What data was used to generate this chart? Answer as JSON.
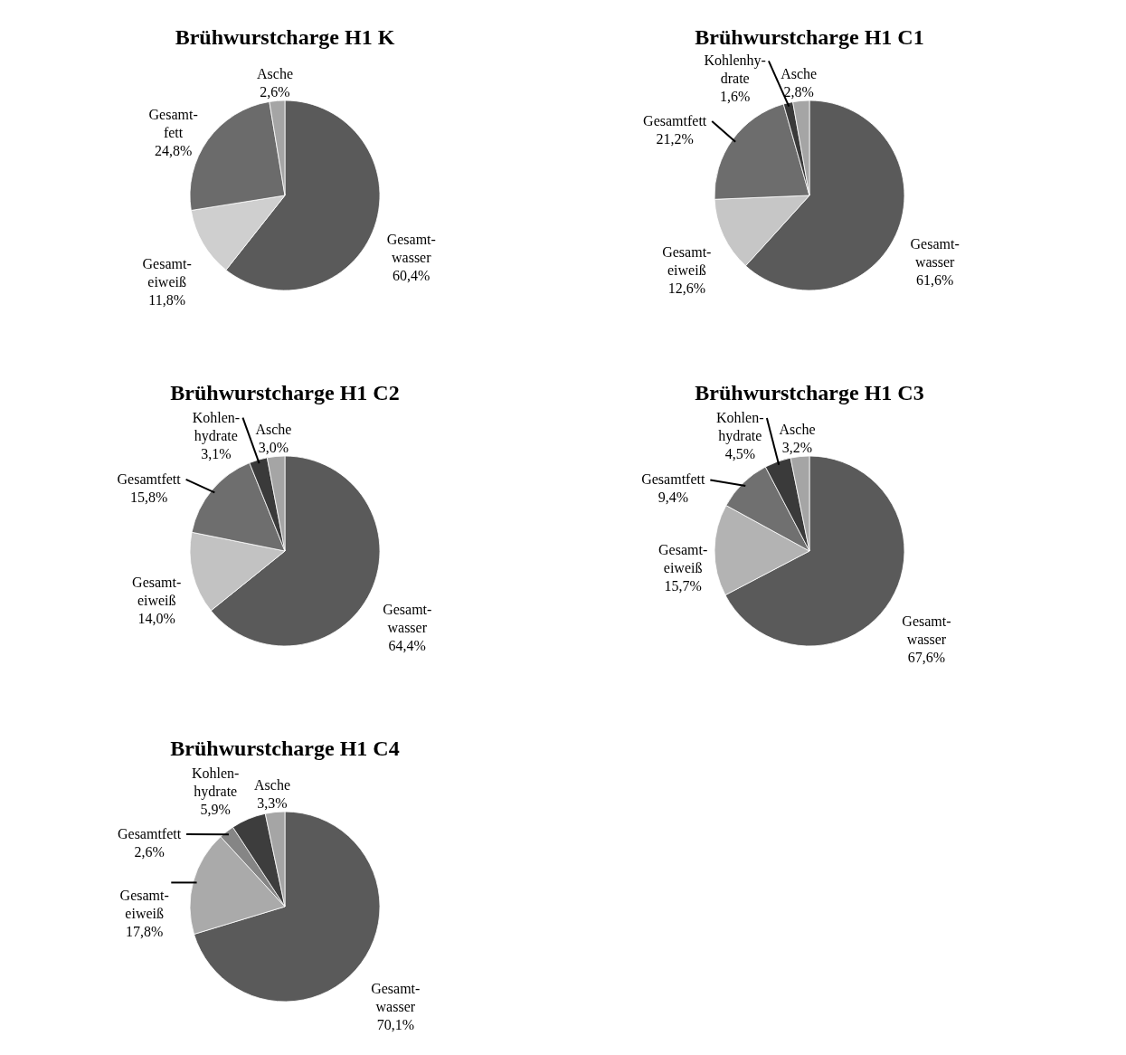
{
  "chart_data": [
    {
      "type": "pie",
      "title": "Brühwurstcharge H1 K",
      "categories": [
        "Gesamt-\nwasser",
        "Gesamt-\neiweiß",
        "Gesamt-\nfett",
        "Asche"
      ],
      "values": [
        60.4,
        11.8,
        24.8,
        2.6
      ],
      "value_labels": [
        "60,4%",
        "11,8%",
        "24,8%",
        "2,6%"
      ],
      "colors": [
        "#5a5a5a",
        "#cfcfcf",
        "#6b6b6b",
        "#a5a5a5"
      ]
    },
    {
      "type": "pie",
      "title": "Brühwurstcharge H1 C1",
      "categories": [
        "Gesamt-\nwasser",
        "Gesamt-\neiweiß",
        "Gesamtfett",
        "Kohlenhy-\ndrate",
        "Asche"
      ],
      "values": [
        61.6,
        12.6,
        21.2,
        1.6,
        2.8
      ],
      "value_labels": [
        "61,6%",
        "12,6%",
        "21,2%",
        "1,6%",
        "2,8%"
      ],
      "colors": [
        "#5a5a5a",
        "#c6c6c6",
        "#6d6d6d",
        "#3a3a3a",
        "#a5a5a5"
      ]
    },
    {
      "type": "pie",
      "title": "Brühwurstcharge H1 C2",
      "categories": [
        "Gesamt-\nwasser",
        "Gesamt-\neiweiß",
        "Gesamtfett",
        "Kohlen-\nhydrate",
        "Asche"
      ],
      "values": [
        64.4,
        14.0,
        15.8,
        3.1,
        3.0
      ],
      "value_labels": [
        "64,4%",
        "14,0%",
        "15,8%",
        "3,1%",
        "3,0%"
      ],
      "colors": [
        "#5a5a5a",
        "#c2c2c2",
        "#6e6e6e",
        "#3a3a3a",
        "#a5a5a5"
      ]
    },
    {
      "type": "pie",
      "title": "Brühwurstcharge H1 C3",
      "categories": [
        "Gesamt-\nwasser",
        "Gesamt-\neiweiß",
        "Gesamtfett",
        "Kohlen-\nhydrate",
        "Asche"
      ],
      "values": [
        67.6,
        15.7,
        9.4,
        4.5,
        3.2
      ],
      "value_labels": [
        "67,6%",
        "15,7%",
        "9,4%",
        "4,5%",
        "3,2%"
      ],
      "colors": [
        "#5a5a5a",
        "#b3b3b3",
        "#707070",
        "#3a3a3a",
        "#a5a5a5"
      ]
    },
    {
      "type": "pie",
      "title": "Brühwurstcharge H1 C4",
      "categories": [
        "Gesamt-\nwasser",
        "Gesamt-\neiweiß",
        "Gesamtfett",
        "Kohlen-\nhydrate",
        "Asche"
      ],
      "values": [
        70.1,
        17.8,
        2.6,
        5.9,
        3.3
      ],
      "value_labels": [
        "70,1%",
        "17,8%",
        "2,6%",
        "5,9%",
        "3,3%"
      ],
      "colors": [
        "#5a5a5a",
        "#aaaaaa",
        "#858585",
        "#3d3d3d",
        "#a5a5a5"
      ]
    }
  ]
}
